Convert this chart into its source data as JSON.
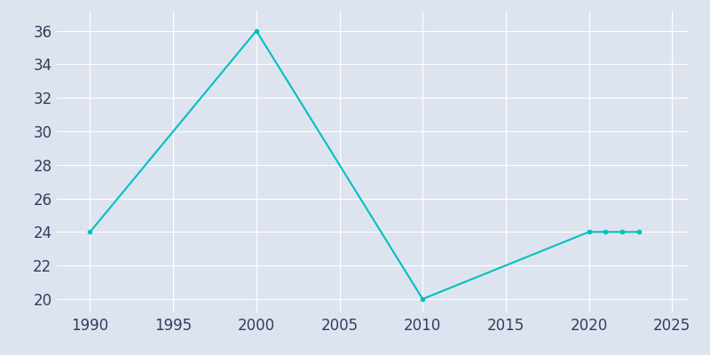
{
  "years": [
    1990,
    2000,
    2010,
    2020,
    2021,
    2022,
    2023
  ],
  "population": [
    24,
    36,
    20,
    24,
    24,
    24,
    24
  ],
  "line_color": "#00c0c0",
  "marker_color": "#00c0c0",
  "background_color": "#dde4f0",
  "grid_color": "#ffffff",
  "xlim": [
    1988,
    2026
  ],
  "ylim": [
    19.2,
    37.2
  ],
  "xticks": [
    1990,
    1995,
    2000,
    2005,
    2010,
    2015,
    2020,
    2025
  ],
  "yticks": [
    20,
    22,
    24,
    26,
    28,
    30,
    32,
    34,
    36
  ],
  "marker_size": 3,
  "line_width": 1.5,
  "tick_labelsize": 12,
  "tick_color": "#3a3a5c"
}
